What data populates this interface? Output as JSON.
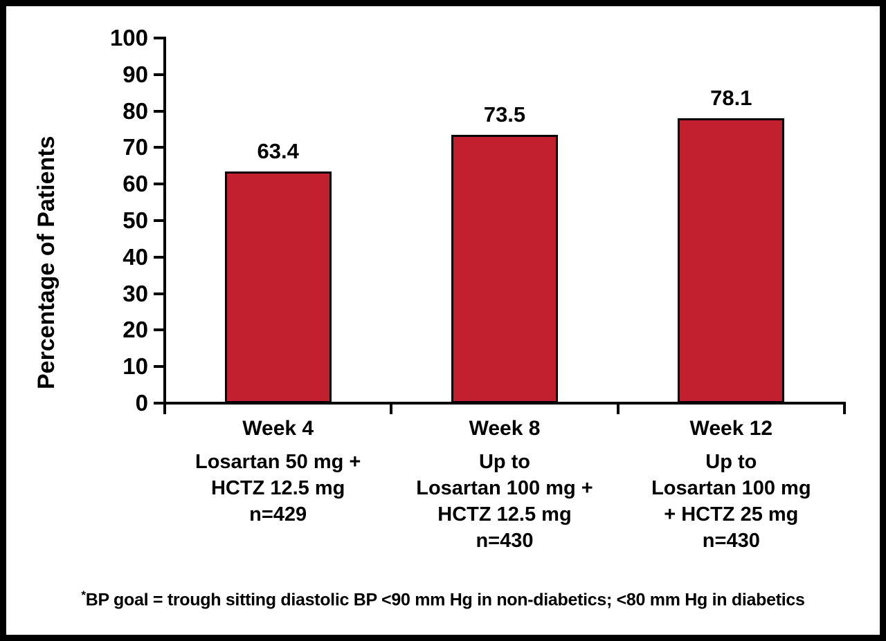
{
  "frame": {
    "background": "#ffffff",
    "border_color": "#000000"
  },
  "chart_data": {
    "type": "bar",
    "title": "",
    "xlabel": "",
    "ylabel": "Percentage of Patients",
    "ylim": [
      0,
      100
    ],
    "yticks": [
      0,
      10,
      20,
      30,
      40,
      50,
      60,
      70,
      80,
      90,
      100
    ],
    "grid": "off",
    "legend": "none",
    "bar_color": "#C2202F",
    "bar_border_color": "#000000",
    "axis_color": "#000000",
    "categories": [
      "Week 4",
      "Week 8",
      "Week 12"
    ],
    "values": [
      63.4,
      73.5,
      78.1
    ],
    "bars": [
      {
        "week": "Week 4",
        "value": 63.4,
        "value_label": "63.4",
        "sublabel_lines": [
          "Losartan 50 mg +",
          "HCTZ 12.5 mg",
          "n=429"
        ]
      },
      {
        "week": "Week 8",
        "value": 73.5,
        "value_label": "73.5",
        "sublabel_lines": [
          "Up to",
          "Losartan 100 mg +",
          "HCTZ 12.5 mg",
          "n=430"
        ]
      },
      {
        "week": "Week 12",
        "value": 78.1,
        "value_label": "78.1",
        "sublabel_lines": [
          "Up to",
          "Losartan 100 mg",
          "+ HCTZ 25 mg",
          "n=430"
        ]
      }
    ],
    "footnote_marker": "*",
    "footnote_text": "BP goal = trough sitting diastolic BP <90 mm Hg in non-diabetics; <80 mm Hg in diabetics"
  }
}
